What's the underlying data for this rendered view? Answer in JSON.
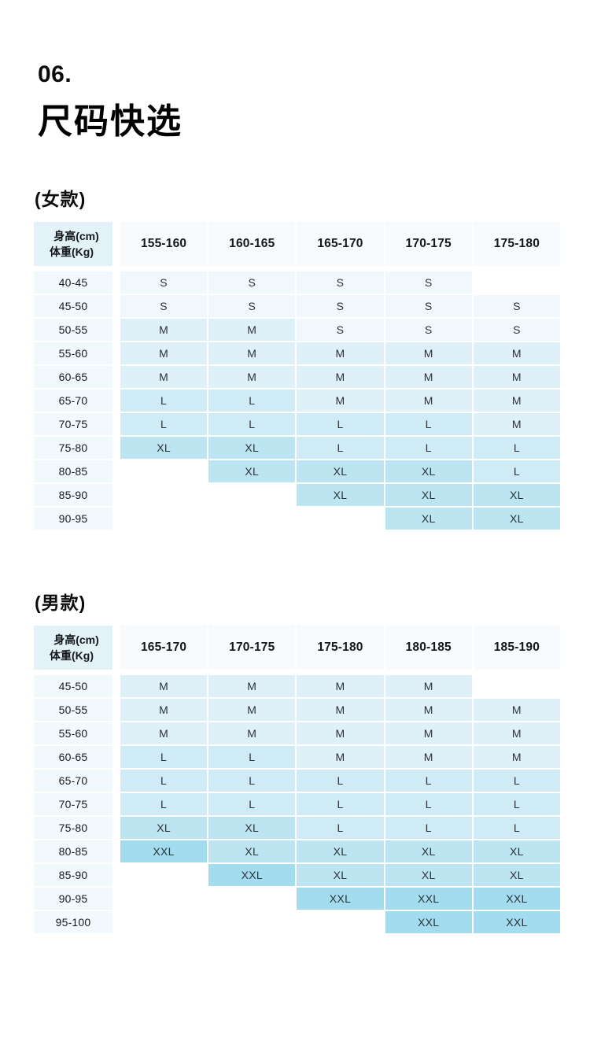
{
  "header": {
    "section_number": "06.",
    "title": "尺码快选"
  },
  "palette": {
    "corner_bg": "#E3F1F8",
    "header_bg": "#F7FBFD",
    "label_bg": "#F2F9FC",
    "cell_text": "#2B3137",
    "S": "#F0F8FC",
    "M": "#DFF1F8",
    "L": "#CFEBF5",
    "XL": "#BCE4F1",
    "XXL": "#A3DCEF"
  },
  "chart_data": [
    {
      "type": "table",
      "label": "(女款)",
      "corner_line1": "身高(cm)",
      "corner_line2": "体重(Kg)",
      "columns": [
        "155-160",
        "160-165",
        "165-170",
        "170-175",
        "175-180"
      ],
      "row_labels": [
        "40-45",
        "45-50",
        "50-55",
        "55-60",
        "60-65",
        "65-70",
        "70-75",
        "75-80",
        "80-85",
        "85-90",
        "90-95"
      ],
      "cells": [
        [
          "S",
          "S",
          "S",
          "S",
          ""
        ],
        [
          "S",
          "S",
          "S",
          "S",
          "S"
        ],
        [
          "M",
          "M",
          "S",
          "S",
          "S"
        ],
        [
          "M",
          "M",
          "M",
          "M",
          "M"
        ],
        [
          "M",
          "M",
          "M",
          "M",
          "M"
        ],
        [
          "L",
          "L",
          "M",
          "M",
          "M"
        ],
        [
          "L",
          "L",
          "L",
          "L",
          "M"
        ],
        [
          "XL",
          "XL",
          "L",
          "L",
          "L"
        ],
        [
          "",
          "XL",
          "XL",
          "XL",
          "L"
        ],
        [
          "",
          "",
          "XL",
          "XL",
          "XL"
        ],
        [
          "",
          "",
          "",
          "XL",
          "XL"
        ]
      ]
    },
    {
      "type": "table",
      "label": "(男款)",
      "corner_line1": "身高(cm)",
      "corner_line2": "体重(Kg)",
      "columns": [
        "165-170",
        "170-175",
        "175-180",
        "180-185",
        "185-190"
      ],
      "row_labels": [
        "45-50",
        "50-55",
        "55-60",
        "60-65",
        "65-70",
        "70-75",
        "75-80",
        "80-85",
        "85-90",
        "90-95",
        "95-100"
      ],
      "cells": [
        [
          "M",
          "M",
          "M",
          "M",
          ""
        ],
        [
          "M",
          "M",
          "M",
          "M",
          "M"
        ],
        [
          "M",
          "M",
          "M",
          "M",
          "M"
        ],
        [
          "L",
          "L",
          "M",
          "M",
          "M"
        ],
        [
          "L",
          "L",
          "L",
          "L",
          "L"
        ],
        [
          "L",
          "L",
          "L",
          "L",
          "L"
        ],
        [
          "XL",
          "XL",
          "L",
          "L",
          "L"
        ],
        [
          "XXL",
          "XL",
          "XL",
          "XL",
          "XL"
        ],
        [
          "",
          "XXL",
          "XL",
          "XL",
          "XL"
        ],
        [
          "",
          "",
          "XXL",
          "XXL",
          "XXL"
        ],
        [
          "",
          "",
          "",
          "XXL",
          "XXL"
        ]
      ]
    }
  ]
}
